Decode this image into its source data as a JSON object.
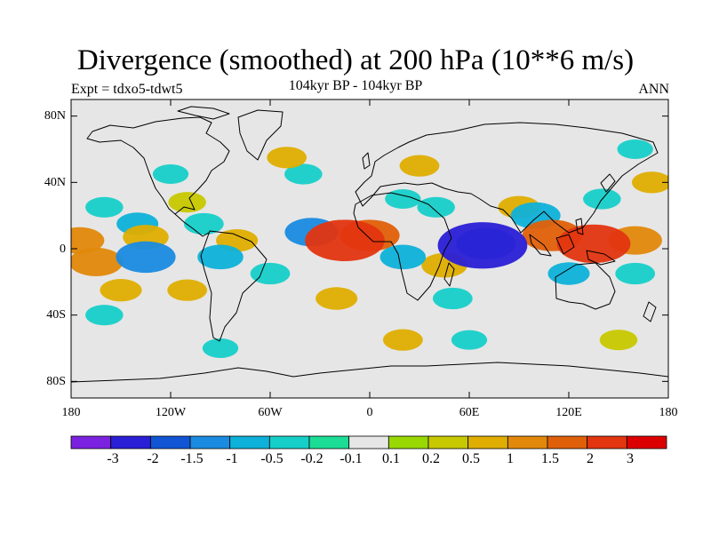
{
  "title": "Divergence (smoothed) at 200 hPa (10**6 m/s)",
  "experiment": "Expt = tdxo5-tdwt5",
  "subtitle": "104kyr BP - 104kyr BP",
  "season": "ANN",
  "lat_labels": [
    "80N",
    "40N",
    "0",
    "40S",
    "80S"
  ],
  "lon_labels": [
    "180",
    "120W",
    "60W",
    "0",
    "60E",
    "120E",
    "180"
  ],
  "colorbar": {
    "colors": [
      "#7b22e0",
      "#2a1fd6",
      "#1155d4",
      "#1a8be0",
      "#0eb1d9",
      "#17cfc9",
      "#1bdd96",
      "#e6e6e6",
      "#99d800",
      "#c8c800",
      "#dfae00",
      "#e2880a",
      "#e0600a",
      "#e33510",
      "#dd0000"
    ],
    "labels": [
      "-3",
      "-2",
      "-1.5",
      "-1",
      "-0.5",
      "-0.2",
      "-0.1",
      "0.1",
      "0.2",
      "0.5",
      "1",
      "1.5",
      "2",
      "3"
    ]
  },
  "chart_data": {
    "type": "heatmap",
    "title": "Divergence (smoothed) at 200 hPa (10**6 m/s)",
    "subtitle": "104kyr BP - 104kyr BP",
    "variable": "Divergence at 200 hPa",
    "units": "10**6 m/s",
    "xlim": [
      -180,
      180
    ],
    "ylim": [
      -90,
      90
    ],
    "xticks": [
      -180,
      -120,
      -60,
      0,
      60,
      120,
      180
    ],
    "yticks": [
      80,
      40,
      0,
      -40,
      -80
    ],
    "levels": [
      -3,
      -2,
      -1.5,
      -1,
      -0.5,
      -0.2,
      -0.1,
      0.1,
      0.2,
      0.5,
      1,
      1.5,
      2,
      3
    ],
    "features": [
      {
        "lon": -15,
        "lat": 5,
        "value": 2.5
      },
      {
        "lon": 0,
        "lat": 8,
        "value": 1.5
      },
      {
        "lon": 135,
        "lat": 3,
        "value": 2.2
      },
      {
        "lon": 110,
        "lat": 8,
        "value": 1.5
      },
      {
        "lon": 160,
        "lat": 5,
        "value": 1.2
      },
      {
        "lon": -165,
        "lat": -8,
        "value": 1.2
      },
      {
        "lon": -175,
        "lat": 5,
        "value": 1.0
      },
      {
        "lon": -135,
        "lat": 7,
        "value": 0.8
      },
      {
        "lon": -80,
        "lat": 5,
        "value": 0.6
      },
      {
        "lon": 45,
        "lat": -10,
        "value": 0.8
      },
      {
        "lon": 90,
        "lat": 25,
        "value": 0.6
      },
      {
        "lon": -20,
        "lat": -30,
        "value": 0.6
      },
      {
        "lon": 170,
        "lat": 40,
        "value": 0.5
      },
      {
        "lon": -150,
        "lat": -25,
        "value": 0.6
      },
      {
        "lon": -110,
        "lat": -25,
        "value": 0.5
      },
      {
        "lon": -50,
        "lat": 55,
        "value": 0.5
      },
      {
        "lon": 30,
        "lat": 50,
        "value": 0.5
      },
      {
        "lon": -110,
        "lat": 28,
        "value": 0.4
      },
      {
        "lon": 20,
        "lat": -55,
        "value": 0.5
      },
      {
        "lon": 150,
        "lat": -55,
        "value": 0.4
      },
      {
        "lon": 68,
        "lat": 2,
        "value": -3.0
      },
      {
        "lon": 70,
        "lat": 3,
        "value": -1.5
      },
      {
        "lon": -135,
        "lat": -5,
        "value": -1.5
      },
      {
        "lon": -35,
        "lat": 10,
        "value": -1.2
      },
      {
        "lon": -90,
        "lat": -5,
        "value": -0.8
      },
      {
        "lon": 100,
        "lat": 20,
        "value": -1.0
      },
      {
        "lon": 20,
        "lat": -5,
        "value": -0.8
      },
      {
        "lon": -140,
        "lat": 15,
        "value": -0.6
      },
      {
        "lon": -100,
        "lat": 15,
        "value": -0.5
      },
      {
        "lon": -60,
        "lat": -15,
        "value": -0.5
      },
      {
        "lon": 120,
        "lat": -15,
        "value": -0.6
      },
      {
        "lon": 160,
        "lat": -15,
        "value": -0.5
      },
      {
        "lon": 50,
        "lat": -30,
        "value": -0.5
      },
      {
        "lon": -160,
        "lat": 25,
        "value": -0.4
      },
      {
        "lon": 140,
        "lat": 30,
        "value": -0.4
      },
      {
        "lon": -160,
        "lat": -40,
        "value": -0.4
      },
      {
        "lon": 40,
        "lat": 25,
        "value": -0.4
      },
      {
        "lon": -40,
        "lat": 45,
        "value": -0.4
      },
      {
        "lon": 20,
        "lat": 30,
        "value": -0.3
      },
      {
        "lon": -120,
        "lat": 45,
        "value": -0.3
      },
      {
        "lon": 160,
        "lat": 60,
        "value": -0.3
      },
      {
        "lon": -90,
        "lat": -60,
        "value": -0.3
      },
      {
        "lon": 60,
        "lat": -55,
        "value": -0.3
      }
    ]
  }
}
